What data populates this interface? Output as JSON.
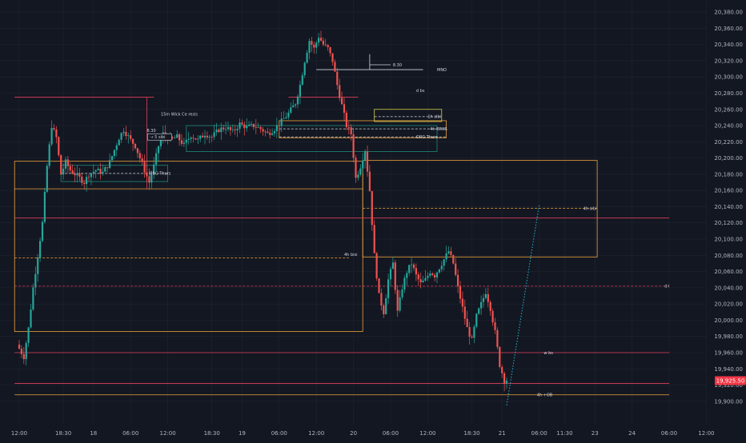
{
  "colors": {
    "background": "#131722",
    "grid": "#1f2430",
    "up": "#26a69a",
    "down": "#ef5350",
    "axis_text": "#b2b5be",
    "orange": "#f0a33a",
    "red_line": "#e0405a",
    "teal_box": "#1e8a7a",
    "yellow_box": "#d6d24a",
    "white": "#d1d4dc",
    "projection": "#22b8d6",
    "price_tag_bg": "#f23645"
  },
  "chart_data": {
    "type": "candlestick",
    "y_axis": {
      "min": 19890,
      "max": 20385,
      "ticks": [
        20380,
        20360,
        20340,
        20320,
        20300,
        20280,
        20260,
        20240,
        20220,
        20200,
        20180,
        20160,
        20140,
        20120,
        20100,
        20080,
        20060,
        20040,
        20020,
        20000,
        19980,
        19960,
        19940,
        19920,
        19900
      ],
      "tick_labels": [
        "20,380.00",
        "20,360.00",
        "20,340.00",
        "20,320.00",
        "20,300.00",
        "20,280.00",
        "20,260.00",
        "20,240.00",
        "20,220.00",
        "20,200.00",
        "20,180.00",
        "20,160.00",
        "20,140.00",
        "20,120.00",
        "20,100.00",
        "20,080.00",
        "20,060.00",
        "20,040.00",
        "20,020.00",
        "20,000.00",
        "19,980.00",
        "19,960.00",
        "19,940.00",
        "19,920.00",
        "19,900.00"
      ],
      "position": "right"
    },
    "x_axis": {
      "ticks": [
        "12:00",
        "18:30",
        "18",
        "06:00",
        "12:00",
        "18:30",
        "19",
        "06:00",
        "12:00",
        "20",
        "06:00",
        "12:00",
        "18:30",
        "21",
        "06:00",
        "11:30",
        "23",
        "24",
        "06:00",
        "12:00"
      ],
      "tick_index": [
        0,
        9.5,
        16,
        24,
        32,
        41.5,
        48,
        56,
        64,
        72,
        80,
        88,
        97.5,
        104,
        112,
        117.5,
        124,
        132,
        140,
        148
      ]
    },
    "grid": true,
    "last_price": 19925.5,
    "last_price_label": "19,925.50",
    "price_path": [
      [
        0,
        19970
      ],
      [
        1.5,
        19955
      ],
      [
        2.5,
        19990
      ],
      [
        3.5,
        20040
      ],
      [
        4.5,
        20080
      ],
      [
        5.5,
        20120
      ],
      [
        6.5,
        20190
      ],
      [
        7.5,
        20240
      ],
      [
        8.5,
        20225
      ],
      [
        9.5,
        20180
      ],
      [
        10.5,
        20195
      ],
      [
        11.5,
        20185
      ],
      [
        13,
        20178
      ],
      [
        14.5,
        20170
      ],
      [
        15.5,
        20180
      ],
      [
        17,
        20185
      ],
      [
        18.5,
        20182
      ],
      [
        20,
        20195
      ],
      [
        21,
        20210
      ],
      [
        22,
        20225
      ],
      [
        23,
        20235
      ],
      [
        24.5,
        20222
      ],
      [
        25.5,
        20215
      ],
      [
        26.5,
        20200
      ],
      [
        27.5,
        20185
      ],
      [
        28.5,
        20170
      ],
      [
        29.5,
        20190
      ],
      [
        30.5,
        20215
      ],
      [
        31.5,
        20230
      ],
      [
        33,
        20222
      ],
      [
        34.5,
        20226
      ],
      [
        36,
        20216
      ],
      [
        37.5,
        20228
      ],
      [
        39,
        20222
      ],
      [
        40.5,
        20230
      ],
      [
        42,
        20226
      ],
      [
        43.5,
        20235
      ],
      [
        45,
        20238
      ],
      [
        46.5,
        20232
      ],
      [
        48,
        20242
      ],
      [
        49.5,
        20238
      ],
      [
        51,
        20240
      ],
      [
        52.5,
        20236
      ],
      [
        54,
        20230
      ],
      [
        55.5,
        20236
      ],
      [
        57,
        20245
      ],
      [
        58.5,
        20255
      ],
      [
        60,
        20268
      ],
      [
        61,
        20290
      ],
      [
        62,
        20320
      ],
      [
        63,
        20345
      ],
      [
        64,
        20335
      ],
      [
        65,
        20350
      ],
      [
        66,
        20340
      ],
      [
        67,
        20335
      ],
      [
        68,
        20320
      ],
      [
        69,
        20290
      ],
      [
        70,
        20265
      ],
      [
        71,
        20240
      ],
      [
        72,
        20230
      ],
      [
        73,
        20175
      ],
      [
        74,
        20190
      ],
      [
        75,
        20210
      ],
      [
        76,
        20160
      ],
      [
        77,
        20080
      ],
      [
        78,
        20030
      ],
      [
        79,
        20010
      ],
      [
        80,
        20050
      ],
      [
        81,
        20070
      ],
      [
        82,
        20010
      ],
      [
        83,
        20040
      ],
      [
        84,
        20060
      ],
      [
        85,
        20070
      ],
      [
        86,
        20055
      ],
      [
        87,
        20045
      ],
      [
        88,
        20050
      ],
      [
        89,
        20060
      ],
      [
        90,
        20055
      ],
      [
        91,
        20065
      ],
      [
        92,
        20075
      ],
      [
        93,
        20085
      ],
      [
        94,
        20070
      ],
      [
        95,
        20040
      ],
      [
        96,
        20015
      ],
      [
        97,
        19990
      ],
      [
        98,
        19975
      ],
      [
        99,
        20005
      ],
      [
        100,
        20020
      ],
      [
        101,
        20035
      ],
      [
        102,
        20015
      ],
      [
        103,
        19985
      ],
      [
        104,
        19945
      ],
      [
        105,
        19925.5
      ]
    ],
    "projection": {
      "from": [
        105,
        19895
      ],
      "to": [
        112,
        20142
      ]
    },
    "annotations": [
      {
        "kind": "line",
        "color": "red_line",
        "y": 20275,
        "x1": -1,
        "x2": 29
      },
      {
        "kind": "line",
        "color": "red_line",
        "y": 20275,
        "x1": 58,
        "x2": 73
      },
      {
        "kind": "text",
        "text": "d bs",
        "x": 85.5,
        "y": 20283
      },
      {
        "kind": "line",
        "color": "white",
        "y": 20309,
        "x1": 64,
        "x2": 87
      },
      {
        "kind": "text",
        "text": "MNO",
        "x": 90,
        "y": 20309
      },
      {
        "kind": "text",
        "text": "8.30",
        "x": 80.5,
        "y": 20315
      },
      {
        "kind": "vline",
        "color": "white",
        "x": 75.5,
        "y1": 20309,
        "y2": 20328
      },
      {
        "kind": "line",
        "color": "white",
        "y": 20315,
        "x1": 75.5,
        "x2": 80
      },
      {
        "kind": "line",
        "color": "orange",
        "y": 20162,
        "x1": -1,
        "x2": 74
      },
      {
        "kind": "line",
        "color": "red_line",
        "y": 20126,
        "x1": -1,
        "x2": 140
      },
      {
        "kind": "line",
        "color": "orange",
        "y": 20077,
        "x1": -1,
        "x2": 71,
        "dashed": true
      },
      {
        "kind": "text",
        "text": "4h bisi",
        "x": 70,
        "y": 20081
      },
      {
        "kind": "rect",
        "color": "orange",
        "y_top": 20196,
        "y_bottom": 19986,
        "x1": -1,
        "x2": 74
      },
      {
        "kind": "rect",
        "color": "orange",
        "y_top": 20197,
        "y_bottom": 20078,
        "x1": 74,
        "x2": 124.5
      },
      {
        "kind": "line",
        "color": "orange",
        "y": 20138,
        "x1": 74,
        "x2": 124.5,
        "dashed": true
      },
      {
        "kind": "text",
        "text": "4h sibi",
        "x": 121.5,
        "y": 20138
      },
      {
        "kind": "line",
        "color": "red_line",
        "y": 20042,
        "x1": -1,
        "x2": 140,
        "dashed": true
      },
      {
        "kind": "text",
        "text": "d l",
        "x": 139,
        "y": 20042
      },
      {
        "kind": "line",
        "color": "red_line",
        "y": 19960,
        "x1": -1,
        "x2": 140
      },
      {
        "kind": "text",
        "text": "w bs",
        "x": 113,
        "y": 19960
      },
      {
        "kind": "line",
        "color": "red_line",
        "y": 19922,
        "x1": -1,
        "x2": 140
      },
      {
        "kind": "line",
        "color": "orange",
        "y": 19908,
        "x1": -1,
        "x2": 140
      },
      {
        "kind": "text",
        "text": "4h +OB",
        "x": 111.5,
        "y": 19908
      },
      {
        "kind": "rect",
        "color": "yellow_box",
        "y_top": 20260,
        "y_bottom": 20245,
        "x1": 76.5,
        "x2": 91
      },
      {
        "kind": "line",
        "color": "white",
        "y": 20251,
        "x1": 76.5,
        "x2": 91,
        "dashed": true
      },
      {
        "kind": "text",
        "text": "1h sibi",
        "x": 88,
        "y": 20251
      },
      {
        "kind": "rect",
        "color": "orange",
        "y_top": 20246,
        "y_bottom": 20225,
        "x1": 56,
        "x2": 92
      },
      {
        "kind": "line",
        "color": "white",
        "y": 20236,
        "x1": 56,
        "x2": 92,
        "dashed": true
      },
      {
        "kind": "text",
        "text": "4h BRKR",
        "x": 88.5,
        "y": 20236
      },
      {
        "kind": "line",
        "color": "white",
        "y": 20226,
        "x1": 56,
        "x2": 92,
        "dashed": true
      },
      {
        "kind": "text",
        "text": "ORG Thurs",
        "x": 85.5,
        "y": 20226
      },
      {
        "kind": "rect",
        "color": "teal_box",
        "y_top": 20240,
        "y_bottom": 20208,
        "x1": 36,
        "x2": 90
      },
      {
        "kind": "rect",
        "color": "teal_box",
        "y_top": 20191,
        "y_bottom": 20171,
        "x1": 9,
        "x2": 32
      },
      {
        "kind": "line",
        "color": "white",
        "y": 20181,
        "x1": 9,
        "x2": 32,
        "dashed": true
      },
      {
        "kind": "text",
        "text": "ORG Thurs",
        "x": 28,
        "y": 20181
      },
      {
        "kind": "vline",
        "color": "red_line",
        "x": 27.5,
        "y1": 20275,
        "y2": 20162
      },
      {
        "kind": "text",
        "text": "15m Wick Ce resis",
        "x": 30.5,
        "y": 20254
      },
      {
        "kind": "text",
        "text": "8.30",
        "x": 27.5,
        "y": 20234
      },
      {
        "kind": "boxed_text",
        "text": "5 sibi",
        "x": 28,
        "y": 20226
      }
    ]
  }
}
